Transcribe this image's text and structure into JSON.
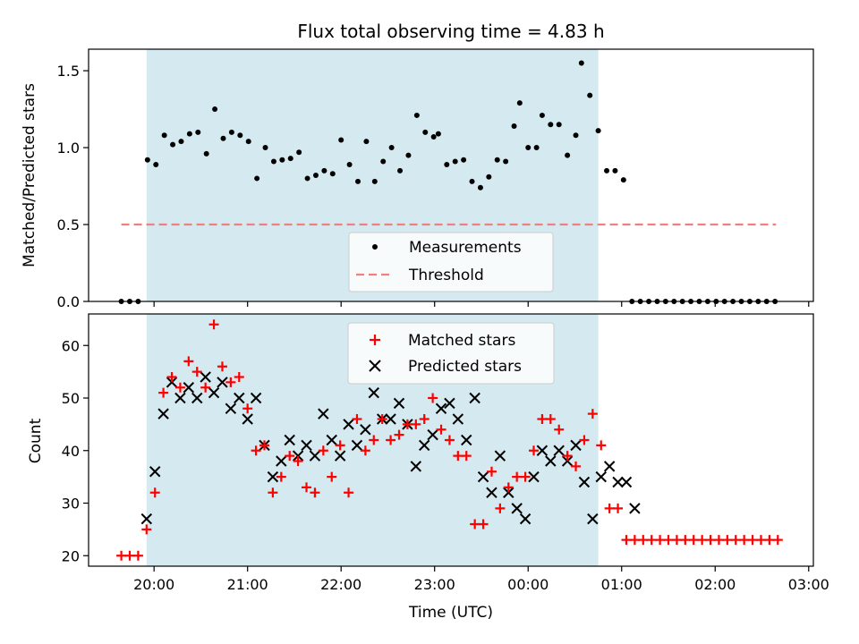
{
  "chart_data": {
    "type": "scatter",
    "title": "Flux total observing time = 4.83 h",
    "xlabel": "Time (UTC)",
    "x_unit": "hours relative to 00:00 UTC",
    "xlim": [
      -2.7,
      5.05
    ],
    "xticks": [
      {
        "value": -2,
        "label": "20:00"
      },
      {
        "value": -1,
        "label": "21:00"
      },
      {
        "value": 0,
        "label": "22:00"
      },
      {
        "value": 1,
        "label": "23:00"
      },
      {
        "value": 2,
        "label": "00:00"
      },
      {
        "value": 3,
        "label": "01:00"
      },
      {
        "value": 4,
        "label": "02:00"
      },
      {
        "value": 5,
        "label": "03:00"
      }
    ],
    "observing_window": [
      -2.08,
      2.75
    ],
    "top": {
      "ylabel": "Matched/Predicted stars",
      "ylim": [
        0,
        1.64
      ],
      "yticks": [
        "0.0",
        "0.5",
        "1.0",
        "1.5"
      ],
      "threshold": 0.5,
      "threshold_x": [
        -2.35,
        4.65
      ],
      "legend": {
        "position": "lower center",
        "entries": [
          "Measurements",
          "Threshold"
        ]
      },
      "measurements": [
        {
          "x": -2.35,
          "y": 0.0
        },
        {
          "x": -2.26,
          "y": 0.0
        },
        {
          "x": -2.17,
          "y": 0.0
        },
        {
          "x": -2.07,
          "y": 0.92
        },
        {
          "x": -1.98,
          "y": 0.89
        },
        {
          "x": -1.89,
          "y": 1.08
        },
        {
          "x": -1.8,
          "y": 1.02
        },
        {
          "x": -1.71,
          "y": 1.04
        },
        {
          "x": -1.62,
          "y": 1.09
        },
        {
          "x": -1.53,
          "y": 1.1
        },
        {
          "x": -1.44,
          "y": 0.96
        },
        {
          "x": -1.35,
          "y": 1.25
        },
        {
          "x": -1.26,
          "y": 1.06
        },
        {
          "x": -1.17,
          "y": 1.1
        },
        {
          "x": -1.08,
          "y": 1.08
        },
        {
          "x": -0.99,
          "y": 1.04
        },
        {
          "x": -0.9,
          "y": 0.8
        },
        {
          "x": -0.81,
          "y": 1.0
        },
        {
          "x": -0.72,
          "y": 0.91
        },
        {
          "x": -0.63,
          "y": 0.92
        },
        {
          "x": -0.54,
          "y": 0.93
        },
        {
          "x": -0.45,
          "y": 0.97
        },
        {
          "x": -0.36,
          "y": 0.8
        },
        {
          "x": -0.27,
          "y": 0.82
        },
        {
          "x": -0.18,
          "y": 0.85
        },
        {
          "x": -0.09,
          "y": 0.83
        },
        {
          "x": 0.0,
          "y": 1.05
        },
        {
          "x": 0.09,
          "y": 0.89
        },
        {
          "x": 0.18,
          "y": 0.78
        },
        {
          "x": 0.27,
          "y": 1.04
        },
        {
          "x": 0.36,
          "y": 0.78
        },
        {
          "x": 0.45,
          "y": 0.91
        },
        {
          "x": 0.54,
          "y": 1.0
        },
        {
          "x": 0.63,
          "y": 0.85
        },
        {
          "x": 0.72,
          "y": 0.95
        },
        {
          "x": 0.81,
          "y": 1.21
        },
        {
          "x": 0.9,
          "y": 1.1
        },
        {
          "x": 0.99,
          "y": 1.07
        },
        {
          "x": 1.04,
          "y": 1.09
        },
        {
          "x": 1.13,
          "y": 0.89
        },
        {
          "x": 1.22,
          "y": 0.91
        },
        {
          "x": 1.31,
          "y": 0.92
        },
        {
          "x": 1.4,
          "y": 0.78
        },
        {
          "x": 1.49,
          "y": 0.74
        },
        {
          "x": 1.58,
          "y": 0.81
        },
        {
          "x": 1.67,
          "y": 0.92
        },
        {
          "x": 1.76,
          "y": 0.91
        },
        {
          "x": 1.85,
          "y": 1.14
        },
        {
          "x": 1.91,
          "y": 1.29
        },
        {
          "x": 2.0,
          "y": 1.0
        },
        {
          "x": 2.09,
          "y": 1.0
        },
        {
          "x": 2.15,
          "y": 1.21
        },
        {
          "x": 2.24,
          "y": 1.15
        },
        {
          "x": 2.33,
          "y": 1.15
        },
        {
          "x": 2.42,
          "y": 0.95
        },
        {
          "x": 2.51,
          "y": 1.08
        },
        {
          "x": 2.57,
          "y": 1.55
        },
        {
          "x": 2.66,
          "y": 1.34
        },
        {
          "x": 2.75,
          "y": 1.11
        },
        {
          "x": 2.84,
          "y": 0.85
        },
        {
          "x": 2.93,
          "y": 0.85
        },
        {
          "x": 3.02,
          "y": 0.79
        },
        {
          "x": 3.11,
          "y": 0.0
        },
        {
          "x": 3.2,
          "y": 0.0
        },
        {
          "x": 3.29,
          "y": 0.0
        },
        {
          "x": 3.38,
          "y": 0.0
        },
        {
          "x": 3.47,
          "y": 0.0
        },
        {
          "x": 3.56,
          "y": 0.0
        },
        {
          "x": 3.65,
          "y": 0.0
        },
        {
          "x": 3.74,
          "y": 0.0
        },
        {
          "x": 3.83,
          "y": 0.0
        },
        {
          "x": 3.92,
          "y": 0.0
        },
        {
          "x": 4.01,
          "y": 0.0
        },
        {
          "x": 4.1,
          "y": 0.0
        },
        {
          "x": 4.19,
          "y": 0.0
        },
        {
          "x": 4.28,
          "y": 0.0
        },
        {
          "x": 4.37,
          "y": 0.0
        },
        {
          "x": 4.46,
          "y": 0.0
        },
        {
          "x": 4.55,
          "y": 0.0
        },
        {
          "x": 4.64,
          "y": 0.0
        }
      ]
    },
    "bottom": {
      "ylabel": "Count",
      "ylim": [
        18,
        66
      ],
      "yticks": [
        "20",
        "30",
        "40",
        "50",
        "60"
      ],
      "legend": {
        "position": "upper center",
        "entries": [
          "Matched stars",
          "Predicted stars"
        ]
      },
      "matched": [
        {
          "x": -2.35,
          "y": 20
        },
        {
          "x": -2.26,
          "y": 20
        },
        {
          "x": -2.17,
          "y": 20
        },
        {
          "x": -2.08,
          "y": 25
        },
        {
          "x": -1.99,
          "y": 32
        },
        {
          "x": -1.9,
          "y": 51
        },
        {
          "x": -1.81,
          "y": 54
        },
        {
          "x": -1.72,
          "y": 52
        },
        {
          "x": -1.63,
          "y": 57
        },
        {
          "x": -1.54,
          "y": 55
        },
        {
          "x": -1.45,
          "y": 52
        },
        {
          "x": -1.36,
          "y": 64
        },
        {
          "x": -1.27,
          "y": 56
        },
        {
          "x": -1.18,
          "y": 53
        },
        {
          "x": -1.09,
          "y": 54
        },
        {
          "x": -1.0,
          "y": 48
        },
        {
          "x": -0.91,
          "y": 40
        },
        {
          "x": -0.82,
          "y": 41
        },
        {
          "x": -0.73,
          "y": 32
        },
        {
          "x": -0.64,
          "y": 35
        },
        {
          "x": -0.55,
          "y": 39
        },
        {
          "x": -0.46,
          "y": 38
        },
        {
          "x": -0.37,
          "y": 33
        },
        {
          "x": -0.28,
          "y": 32
        },
        {
          "x": -0.19,
          "y": 40
        },
        {
          "x": -0.1,
          "y": 35
        },
        {
          "x": -0.01,
          "y": 41
        },
        {
          "x": 0.08,
          "y": 32
        },
        {
          "x": 0.17,
          "y": 46
        },
        {
          "x": 0.26,
          "y": 40
        },
        {
          "x": 0.35,
          "y": 42
        },
        {
          "x": 0.44,
          "y": 46
        },
        {
          "x": 0.53,
          "y": 42
        },
        {
          "x": 0.62,
          "y": 43
        },
        {
          "x": 0.71,
          "y": 45
        },
        {
          "x": 0.8,
          "y": 45
        },
        {
          "x": 0.89,
          "y": 46
        },
        {
          "x": 0.98,
          "y": 50
        },
        {
          "x": 1.07,
          "y": 44
        },
        {
          "x": 1.16,
          "y": 42
        },
        {
          "x": 1.25,
          "y": 39
        },
        {
          "x": 1.34,
          "y": 39
        },
        {
          "x": 1.43,
          "y": 26
        },
        {
          "x": 1.52,
          "y": 26
        },
        {
          "x": 1.61,
          "y": 36
        },
        {
          "x": 1.7,
          "y": 29
        },
        {
          "x": 1.79,
          "y": 33
        },
        {
          "x": 1.88,
          "y": 35
        },
        {
          "x": 1.97,
          "y": 35
        },
        {
          "x": 2.06,
          "y": 40
        },
        {
          "x": 2.15,
          "y": 46
        },
        {
          "x": 2.24,
          "y": 46
        },
        {
          "x": 2.33,
          "y": 44
        },
        {
          "x": 2.42,
          "y": 39
        },
        {
          "x": 2.51,
          "y": 37
        },
        {
          "x": 2.6,
          "y": 42
        },
        {
          "x": 2.69,
          "y": 47
        },
        {
          "x": 2.78,
          "y": 41
        },
        {
          "x": 2.87,
          "y": 29
        },
        {
          "x": 2.96,
          "y": 29
        },
        {
          "x": 3.05,
          "y": 23
        },
        {
          "x": 3.14,
          "y": 23
        },
        {
          "x": 3.23,
          "y": 23
        },
        {
          "x": 3.32,
          "y": 23
        },
        {
          "x": 3.41,
          "y": 23
        },
        {
          "x": 3.5,
          "y": 23
        },
        {
          "x": 3.59,
          "y": 23
        },
        {
          "x": 3.68,
          "y": 23
        },
        {
          "x": 3.77,
          "y": 23
        },
        {
          "x": 3.86,
          "y": 23
        },
        {
          "x": 3.95,
          "y": 23
        },
        {
          "x": 4.04,
          "y": 23
        },
        {
          "x": 4.13,
          "y": 23
        },
        {
          "x": 4.22,
          "y": 23
        },
        {
          "x": 4.31,
          "y": 23
        },
        {
          "x": 4.4,
          "y": 23
        },
        {
          "x": 4.49,
          "y": 23
        },
        {
          "x": 4.58,
          "y": 23
        },
        {
          "x": 4.67,
          "y": 23
        }
      ],
      "predicted": [
        {
          "x": -2.08,
          "y": 27
        },
        {
          "x": -1.99,
          "y": 36
        },
        {
          "x": -1.9,
          "y": 47
        },
        {
          "x": -1.81,
          "y": 53
        },
        {
          "x": -1.72,
          "y": 50
        },
        {
          "x": -1.63,
          "y": 52
        },
        {
          "x": -1.54,
          "y": 50
        },
        {
          "x": -1.45,
          "y": 54
        },
        {
          "x": -1.36,
          "y": 51
        },
        {
          "x": -1.27,
          "y": 53
        },
        {
          "x": -1.18,
          "y": 48
        },
        {
          "x": -1.09,
          "y": 50
        },
        {
          "x": -1.0,
          "y": 46
        },
        {
          "x": -0.91,
          "y": 50
        },
        {
          "x": -0.82,
          "y": 41
        },
        {
          "x": -0.73,
          "y": 35
        },
        {
          "x": -0.64,
          "y": 38
        },
        {
          "x": -0.55,
          "y": 42
        },
        {
          "x": -0.46,
          "y": 39
        },
        {
          "x": -0.37,
          "y": 41
        },
        {
          "x": -0.28,
          "y": 39
        },
        {
          "x": -0.19,
          "y": 47
        },
        {
          "x": -0.1,
          "y": 42
        },
        {
          "x": -0.01,
          "y": 39
        },
        {
          "x": 0.08,
          "y": 45
        },
        {
          "x": 0.17,
          "y": 41
        },
        {
          "x": 0.26,
          "y": 44
        },
        {
          "x": 0.35,
          "y": 51
        },
        {
          "x": 0.44,
          "y": 46
        },
        {
          "x": 0.53,
          "y": 46
        },
        {
          "x": 0.62,
          "y": 49
        },
        {
          "x": 0.71,
          "y": 45
        },
        {
          "x": 0.8,
          "y": 37
        },
        {
          "x": 0.89,
          "y": 41
        },
        {
          "x": 0.98,
          "y": 43
        },
        {
          "x": 1.07,
          "y": 48
        },
        {
          "x": 1.16,
          "y": 49
        },
        {
          "x": 1.25,
          "y": 46
        },
        {
          "x": 1.34,
          "y": 42
        },
        {
          "x": 1.43,
          "y": 50
        },
        {
          "x": 1.52,
          "y": 35
        },
        {
          "x": 1.61,
          "y": 32
        },
        {
          "x": 1.7,
          "y": 39
        },
        {
          "x": 1.79,
          "y": 32
        },
        {
          "x": 1.88,
          "y": 29
        },
        {
          "x": 1.97,
          "y": 27
        },
        {
          "x": 2.06,
          "y": 35
        },
        {
          "x": 2.15,
          "y": 40
        },
        {
          "x": 2.24,
          "y": 38
        },
        {
          "x": 2.33,
          "y": 40
        },
        {
          "x": 2.42,
          "y": 38
        },
        {
          "x": 2.51,
          "y": 41
        },
        {
          "x": 2.6,
          "y": 34
        },
        {
          "x": 2.69,
          "y": 27
        },
        {
          "x": 2.78,
          "y": 35
        },
        {
          "x": 2.87,
          "y": 37
        },
        {
          "x": 2.96,
          "y": 34
        },
        {
          "x": 3.05,
          "y": 34
        },
        {
          "x": 3.14,
          "y": 29
        }
      ]
    },
    "colors": {
      "window": "#d4eaf0",
      "threshold": "#f08080",
      "matched": "#ff0000",
      "predicted": "#000000",
      "measurements": "#000000"
    }
  }
}
